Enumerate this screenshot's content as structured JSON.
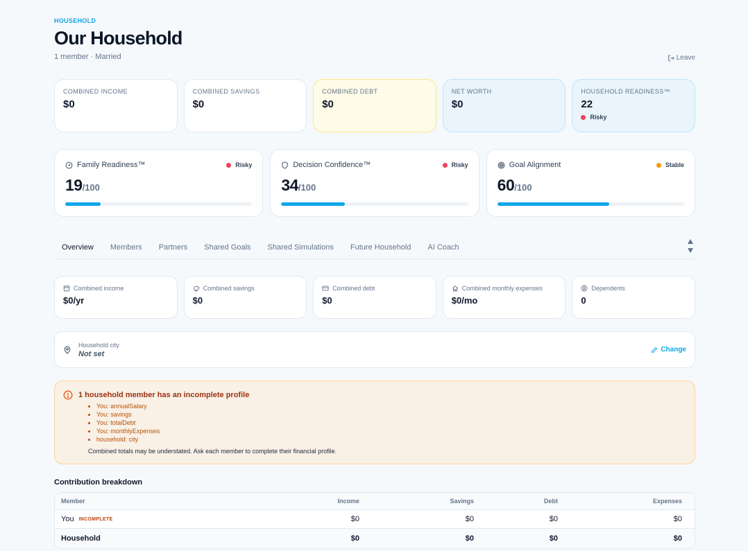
{
  "header": {
    "eyebrow": "HOUSEHOLD",
    "title": "Our Household",
    "subtitle": "1 member · Married",
    "leave_label": "Leave"
  },
  "kpis": [
    {
      "label": "COMBINED INCOME",
      "value": "$0"
    },
    {
      "label": "COMBINED SAVINGS",
      "value": "$0"
    },
    {
      "label": "COMBINED DEBT",
      "value": "$0"
    },
    {
      "label": "NET WORTH",
      "value": "$0"
    },
    {
      "label": "HOUSEHOLD READINESS™",
      "value": "22",
      "status": "Risky"
    }
  ],
  "scores": [
    {
      "name": "Family Readiness™",
      "icon": "readiness-icon",
      "status": "Risky",
      "status_color": "#f43f5e",
      "value": "19",
      "max": "/100",
      "fraction": 0.19
    },
    {
      "name": "Decision Confidence™",
      "icon": "shield-icon",
      "status": "Risky",
      "status_color": "#f43f5e",
      "value": "34",
      "max": "/100",
      "fraction": 0.34
    },
    {
      "name": "Goal Alignment",
      "icon": "target-icon",
      "status": "Stable",
      "status_color": "#f59e0b",
      "value": "60",
      "max": "/100",
      "fraction": 0.6
    }
  ],
  "tabs": [
    "Overview",
    "Members",
    "Partners",
    "Shared Goals",
    "Shared Simulations",
    "Future Household",
    "AI Coach"
  ],
  "active_tab": "Overview",
  "stats": [
    {
      "label": "Combined income",
      "icon": "calendar-icon",
      "value": "$0/yr"
    },
    {
      "label": "Combined savings",
      "icon": "piggy-bank-icon",
      "value": "$0"
    },
    {
      "label": "Combined debt",
      "icon": "credit-card-icon",
      "value": "$0"
    },
    {
      "label": "Combined monthly expenses",
      "icon": "home-icon",
      "value": "$0/mo"
    },
    {
      "label": "Dependents",
      "icon": "dependents-icon",
      "value": "0"
    }
  ],
  "city": {
    "label": "Household city",
    "value": "Not set",
    "change_label": "Change"
  },
  "warning": {
    "title": "1 household member has an incomplete profile",
    "items": [
      "You: annualSalary",
      "You: savings",
      "You: totalDebt",
      "You: monthlyExpenses",
      "household: city"
    ],
    "note": "Combined totals may be understated. Ask each member to complete their financial profile."
  },
  "contribution": {
    "title": "Contribution breakdown",
    "columns": [
      "Member",
      "Income",
      "Savings",
      "Debt",
      "Expenses"
    ],
    "rows": [
      {
        "member": "You",
        "badge": "INCOMPLETE",
        "income": "$0",
        "savings": "$0",
        "debt": "$0",
        "expenses": "$0"
      }
    ],
    "total": {
      "member": "Household",
      "income": "$0",
      "savings": "$0",
      "debt": "$0",
      "expenses": "$0"
    }
  },
  "colors": {
    "accent": "#0ea5e9",
    "risky": "#f43f5e",
    "stable": "#f59e0b",
    "warning_bg": "#f9f0e6"
  }
}
